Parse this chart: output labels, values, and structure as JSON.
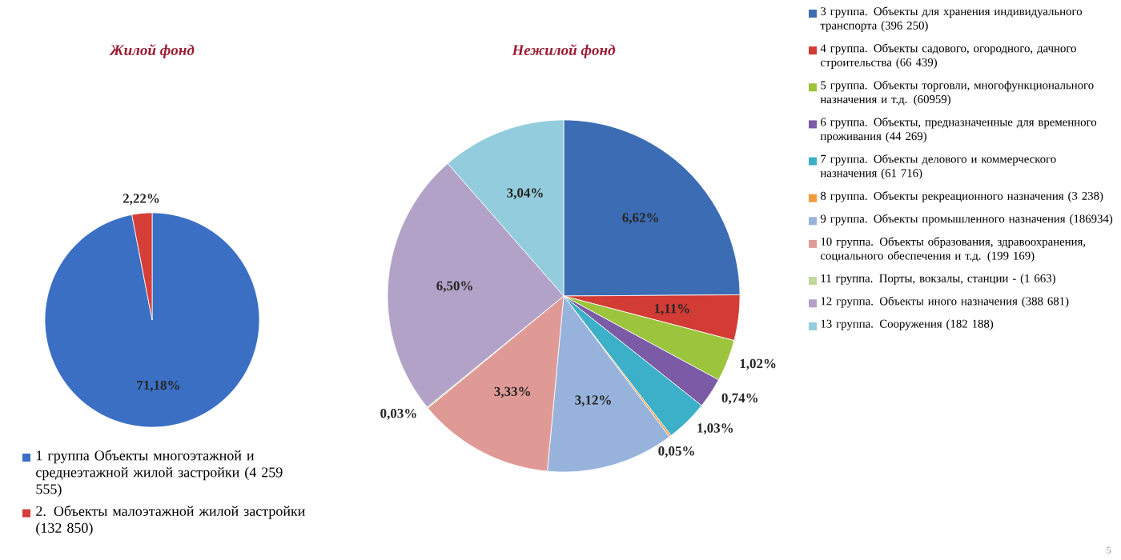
{
  "chart_data": [
    {
      "type": "pie",
      "title": "Жилой фонд",
      "categories": [
        "1 группа  Объекты многоэтажной и среднеэтажной жилой застройки (4 259 555)",
        "2. Объекты малоэтажной жилой застройки (132 850)"
      ],
      "values": [
        71.18,
        2.22
      ],
      "value_labels": [
        "71,18%",
        "2,22%"
      ],
      "colors": [
        "#3a6fc4",
        "#d63e38"
      ],
      "legend": "bottom"
    },
    {
      "type": "pie",
      "title": "Нежилой фонд",
      "categories": [
        "3 группа. Объекты для хранения индивидуального транспорта (396 250)",
        "4 группа. Объекты садового, огородного, дачного строительства  (66 439)",
        "5 группа. Объекты торговли, многофункционального назначения и т.д. (60959)",
        "6 группа. Объекты, предназначенные для временного проживания (44 269)",
        "7 группа. Объекты делового и коммерческого назначения (61 716)",
        "8 группа. Объекты рекреационного назначения (3 238)",
        "9 группа. Объекты промышленного назначения (186934)",
        "10 группа. Объекты образования, здравоохранения, социального обеспечения и т.д. (199 169)",
        "11 группа. Порты, вокзалы, станции - (1 663)",
        "12 группа. Объекты иного назначения (388 681)",
        "13 группа. Сооружения (182 188)"
      ],
      "values": [
        6.62,
        1.11,
        1.02,
        0.74,
        1.03,
        0.05,
        3.12,
        3.33,
        0.03,
        6.5,
        3.04
      ],
      "value_labels": [
        "6,62%",
        "1,11%",
        "1,02%",
        "0,74%",
        "1,03%",
        "0,05%",
        "3,12%",
        "3,33%",
        "0,03%",
        "6,50%",
        "3,04%"
      ],
      "colors": [
        "#3c6cb4",
        "#d23c35",
        "#9cc43c",
        "#7b5aa6",
        "#3cb0c8",
        "#f39a3c",
        "#97b3dc",
        "#e09a96",
        "#c3d69b",
        "#b3a2c8",
        "#93cddd"
      ],
      "legend": "right",
      "annotations": [
        "5"
      ]
    }
  ]
}
